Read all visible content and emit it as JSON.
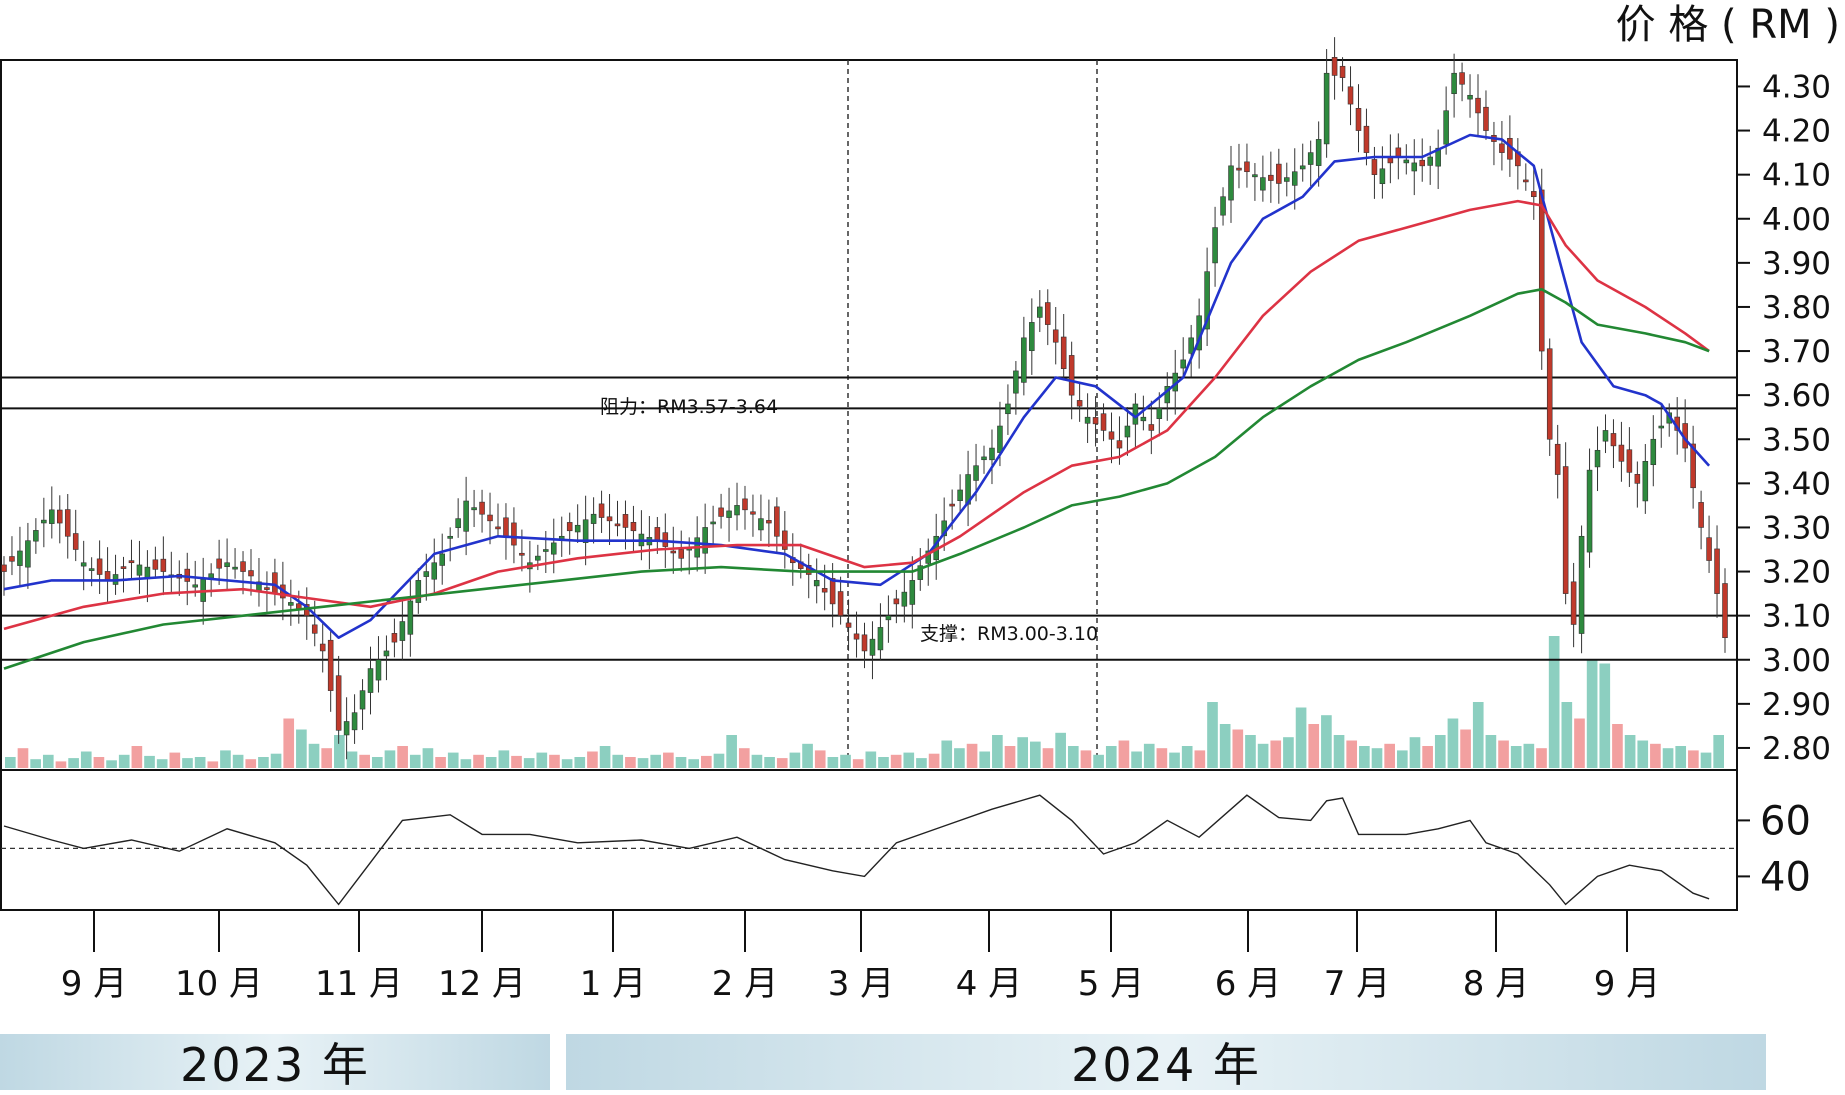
{
  "chart_data": {
    "type": "candlestick",
    "price_unit_label": "价 格 ( RM )",
    "ylim": [
      2.75,
      4.36
    ],
    "y_ticks": [
      "4.30",
      "4.20",
      "4.10",
      "4.00",
      "3.90",
      "3.80",
      "3.70",
      "3.60",
      "3.50",
      "3.40",
      "3.30",
      "3.20",
      "3.10",
      "3.00",
      "2.90",
      "2.80"
    ],
    "x_month_labels": [
      "9 月",
      "10 月",
      "11 月",
      "12 月",
      "1 月",
      "2 月",
      "3 月",
      "4 月",
      "5 月",
      "6 月",
      "7 月",
      "8 月",
      "9 月"
    ],
    "year_labels": [
      "2023 年",
      "2024 年"
    ],
    "resistance": {
      "label": "阻力：RM3.57-3.64",
      "low": 3.57,
      "high": 3.64
    },
    "support": {
      "label": "支撑：RM3.00-3.10",
      "low": 3.0,
      "high": 3.1
    },
    "price_path": [
      [
        0,
        3.2
      ],
      [
        6,
        3.34
      ],
      [
        10,
        3.22
      ],
      [
        13,
        3.18
      ],
      [
        16,
        3.22
      ],
      [
        20,
        3.2
      ],
      [
        24,
        3.17
      ],
      [
        28,
        3.22
      ],
      [
        31,
        3.19
      ],
      [
        34,
        3.15
      ],
      [
        36,
        3.13
      ],
      [
        38,
        3.1
      ],
      [
        40,
        3.02
      ],
      [
        42,
        2.84
      ],
      [
        44,
        2.88
      ],
      [
        46,
        2.98
      ],
      [
        49,
        3.04
      ],
      [
        52,
        3.18
      ],
      [
        55,
        3.24
      ],
      [
        58,
        3.36
      ],
      [
        62,
        3.3
      ],
      [
        66,
        3.22
      ],
      [
        70,
        3.28
      ],
      [
        74,
        3.33
      ],
      [
        78,
        3.3
      ],
      [
        82,
        3.27
      ],
      [
        85,
        3.23
      ],
      [
        88,
        3.3
      ],
      [
        92,
        3.35
      ],
      [
        96,
        3.31
      ],
      [
        99,
        3.22
      ],
      [
        102,
        3.18
      ],
      [
        105,
        3.1
      ],
      [
        108,
        3.02
      ],
      [
        111,
        3.1
      ],
      [
        114,
        3.18
      ],
      [
        117,
        3.28
      ],
      [
        121,
        3.42
      ],
      [
        124,
        3.48
      ],
      [
        126,
        3.58
      ],
      [
        128,
        3.73
      ],
      [
        130,
        3.8
      ],
      [
        132,
        3.72
      ],
      [
        134,
        3.6
      ],
      [
        136,
        3.55
      ],
      [
        138,
        3.52
      ],
      [
        140,
        3.48
      ],
      [
        142,
        3.58
      ],
      [
        144,
        3.52
      ],
      [
        146,
        3.62
      ],
      [
        148,
        3.68
      ],
      [
        150,
        3.78
      ],
      [
        152,
        3.98
      ],
      [
        154,
        4.12
      ],
      [
        157,
        4.1
      ],
      [
        160,
        4.08
      ],
      [
        163,
        4.12
      ],
      [
        165,
        4.18
      ],
      [
        166,
        4.33
      ],
      [
        168,
        4.32
      ],
      [
        170,
        4.2
      ],
      [
        172,
        4.1
      ],
      [
        175,
        4.14
      ],
      [
        178,
        4.12
      ],
      [
        180,
        4.16
      ],
      [
        182,
        4.33
      ],
      [
        184,
        4.28
      ],
      [
        186,
        4.2
      ],
      [
        188,
        4.15
      ],
      [
        190,
        4.12
      ],
      [
        192,
        4.05
      ],
      [
        193,
        3.7
      ],
      [
        194,
        3.5
      ],
      [
        195,
        3.42
      ],
      [
        196,
        3.15
      ],
      [
        197,
        3.08
      ],
      [
        198,
        3.28
      ],
      [
        199,
        3.43
      ],
      [
        201,
        3.52
      ],
      [
        203,
        3.45
      ],
      [
        205,
        3.4
      ],
      [
        207,
        3.5
      ],
      [
        209,
        3.56
      ],
      [
        211,
        3.48
      ],
      [
        213,
        3.3
      ],
      [
        215,
        3.15
      ],
      [
        216,
        3.05
      ]
    ],
    "ma_series": [
      {
        "color": "#2233cc",
        "points": [
          [
            0,
            3.16
          ],
          [
            6,
            3.18
          ],
          [
            14,
            3.18
          ],
          [
            22,
            3.19
          ],
          [
            34,
            3.17
          ],
          [
            38,
            3.12
          ],
          [
            42,
            3.05
          ],
          [
            46,
            3.09
          ],
          [
            54,
            3.24
          ],
          [
            62,
            3.28
          ],
          [
            72,
            3.27
          ],
          [
            82,
            3.27
          ],
          [
            90,
            3.26
          ],
          [
            98,
            3.24
          ],
          [
            104,
            3.18
          ],
          [
            110,
            3.17
          ],
          [
            116,
            3.24
          ],
          [
            122,
            3.38
          ],
          [
            128,
            3.55
          ],
          [
            132,
            3.64
          ],
          [
            137,
            3.62
          ],
          [
            142,
            3.55
          ],
          [
            148,
            3.64
          ],
          [
            154,
            3.9
          ],
          [
            158,
            4.0
          ],
          [
            163,
            4.05
          ],
          [
            167,
            4.13
          ],
          [
            172,
            4.14
          ],
          [
            178,
            4.14
          ],
          [
            184,
            4.19
          ],
          [
            188,
            4.18
          ],
          [
            192,
            4.12
          ],
          [
            195,
            3.92
          ],
          [
            198,
            3.72
          ],
          [
            202,
            3.62
          ],
          [
            206,
            3.6
          ],
          [
            208,
            3.58
          ],
          [
            211,
            3.5
          ],
          [
            214,
            3.44
          ]
        ]
      },
      {
        "color": "#dd3344",
        "points": [
          [
            0,
            3.07
          ],
          [
            10,
            3.12
          ],
          [
            20,
            3.15
          ],
          [
            30,
            3.16
          ],
          [
            38,
            3.14
          ],
          [
            46,
            3.12
          ],
          [
            54,
            3.15
          ],
          [
            62,
            3.2
          ],
          [
            72,
            3.23
          ],
          [
            82,
            3.25
          ],
          [
            92,
            3.26
          ],
          [
            100,
            3.26
          ],
          [
            108,
            3.21
          ],
          [
            114,
            3.22
          ],
          [
            120,
            3.28
          ],
          [
            128,
            3.38
          ],
          [
            134,
            3.44
          ],
          [
            140,
            3.46
          ],
          [
            146,
            3.52
          ],
          [
            152,
            3.64
          ],
          [
            158,
            3.78
          ],
          [
            164,
            3.88
          ],
          [
            170,
            3.95
          ],
          [
            176,
            3.98
          ],
          [
            184,
            4.02
          ],
          [
            190,
            4.04
          ],
          [
            193,
            4.03
          ],
          [
            196,
            3.94
          ],
          [
            200,
            3.86
          ],
          [
            206,
            3.8
          ],
          [
            211,
            3.74
          ],
          [
            214,
            3.7
          ]
        ]
      },
      {
        "color": "#228833",
        "points": [
          [
            0,
            2.98
          ],
          [
            10,
            3.04
          ],
          [
            20,
            3.08
          ],
          [
            30,
            3.1
          ],
          [
            40,
            3.12
          ],
          [
            50,
            3.14
          ],
          [
            60,
            3.16
          ],
          [
            70,
            3.18
          ],
          [
            80,
            3.2
          ],
          [
            90,
            3.21
          ],
          [
            100,
            3.2
          ],
          [
            108,
            3.2
          ],
          [
            114,
            3.2
          ],
          [
            120,
            3.24
          ],
          [
            128,
            3.3
          ],
          [
            134,
            3.35
          ],
          [
            140,
            3.37
          ],
          [
            146,
            3.4
          ],
          [
            152,
            3.46
          ],
          [
            158,
            3.55
          ],
          [
            164,
            3.62
          ],
          [
            170,
            3.68
          ],
          [
            176,
            3.72
          ],
          [
            184,
            3.78
          ],
          [
            190,
            3.83
          ],
          [
            193,
            3.84
          ],
          [
            196,
            3.81
          ],
          [
            200,
            3.76
          ],
          [
            206,
            3.74
          ],
          [
            211,
            3.72
          ],
          [
            214,
            3.7
          ]
        ]
      }
    ],
    "rsi": {
      "ylim": [
        28,
        78
      ],
      "ticks": [
        "60",
        "40"
      ],
      "midline": 50,
      "points": [
        [
          0,
          58
        ],
        [
          6,
          53
        ],
        [
          10,
          50
        ],
        [
          16,
          53
        ],
        [
          22,
          49
        ],
        [
          28,
          57
        ],
        [
          34,
          52
        ],
        [
          38,
          44
        ],
        [
          42,
          30
        ],
        [
          46,
          45
        ],
        [
          50,
          60
        ],
        [
          56,
          62
        ],
        [
          60,
          55
        ],
        [
          66,
          55
        ],
        [
          72,
          52
        ],
        [
          80,
          53
        ],
        [
          86,
          50
        ],
        [
          92,
          54
        ],
        [
          98,
          46
        ],
        [
          104,
          42
        ],
        [
          108,
          40
        ],
        [
          112,
          52
        ],
        [
          118,
          58
        ],
        [
          124,
          64
        ],
        [
          130,
          69
        ],
        [
          134,
          60
        ],
        [
          138,
          48
        ],
        [
          142,
          52
        ],
        [
          146,
          60
        ],
        [
          150,
          54
        ],
        [
          156,
          69
        ],
        [
          160,
          61
        ],
        [
          164,
          60
        ],
        [
          166,
          67
        ],
        [
          168,
          68
        ],
        [
          170,
          55
        ],
        [
          176,
          55
        ],
        [
          180,
          57
        ],
        [
          184,
          60
        ],
        [
          186,
          52
        ],
        [
          190,
          48
        ],
        [
          194,
          37
        ],
        [
          196,
          30
        ],
        [
          200,
          40
        ],
        [
          204,
          44
        ],
        [
          208,
          42
        ],
        [
          212,
          34
        ],
        [
          214,
          32
        ]
      ]
    },
    "volume": {
      "max": 1.0,
      "bars": [
        0.1,
        0.18,
        0.08,
        0.12,
        0.06,
        0.09,
        0.15,
        0.1,
        0.07,
        0.12,
        0.2,
        0.11,
        0.08,
        0.14,
        0.09,
        0.1,
        0.06,
        0.16,
        0.12,
        0.08,
        0.1,
        0.13,
        0.45,
        0.35,
        0.22,
        0.18,
        0.3,
        0.15,
        0.12,
        0.1,
        0.16,
        0.2,
        0.12,
        0.18,
        0.1,
        0.14,
        0.08,
        0.12,
        0.1,
        0.16,
        0.11,
        0.09,
        0.14,
        0.12,
        0.08,
        0.1,
        0.15,
        0.2,
        0.12,
        0.1,
        0.09,
        0.12,
        0.14,
        0.1,
        0.08,
        0.11,
        0.13,
        0.3,
        0.18,
        0.12,
        0.1,
        0.09,
        0.14,
        0.22,
        0.16,
        0.1,
        0.12,
        0.08,
        0.15,
        0.1,
        0.12,
        0.14,
        0.09,
        0.13,
        0.25,
        0.18,
        0.22,
        0.15,
        0.3,
        0.2,
        0.28,
        0.24,
        0.18,
        0.32,
        0.2,
        0.16,
        0.12,
        0.2,
        0.25,
        0.15,
        0.22,
        0.18,
        0.14,
        0.2,
        0.16,
        0.6,
        0.4,
        0.35,
        0.3,
        0.22,
        0.25,
        0.28,
        0.55,
        0.4,
        0.48,
        0.3,
        0.25,
        0.2,
        0.18,
        0.22,
        0.16,
        0.28,
        0.2,
        0.3,
        0.45,
        0.35,
        0.6,
        0.3,
        0.25,
        0.2,
        0.22,
        0.18,
        1.2,
        0.6,
        0.45,
        0.98,
        0.95,
        0.4,
        0.3,
        0.25,
        0.22,
        0.18,
        0.2,
        0.16,
        0.14,
        0.3
      ]
    }
  }
}
